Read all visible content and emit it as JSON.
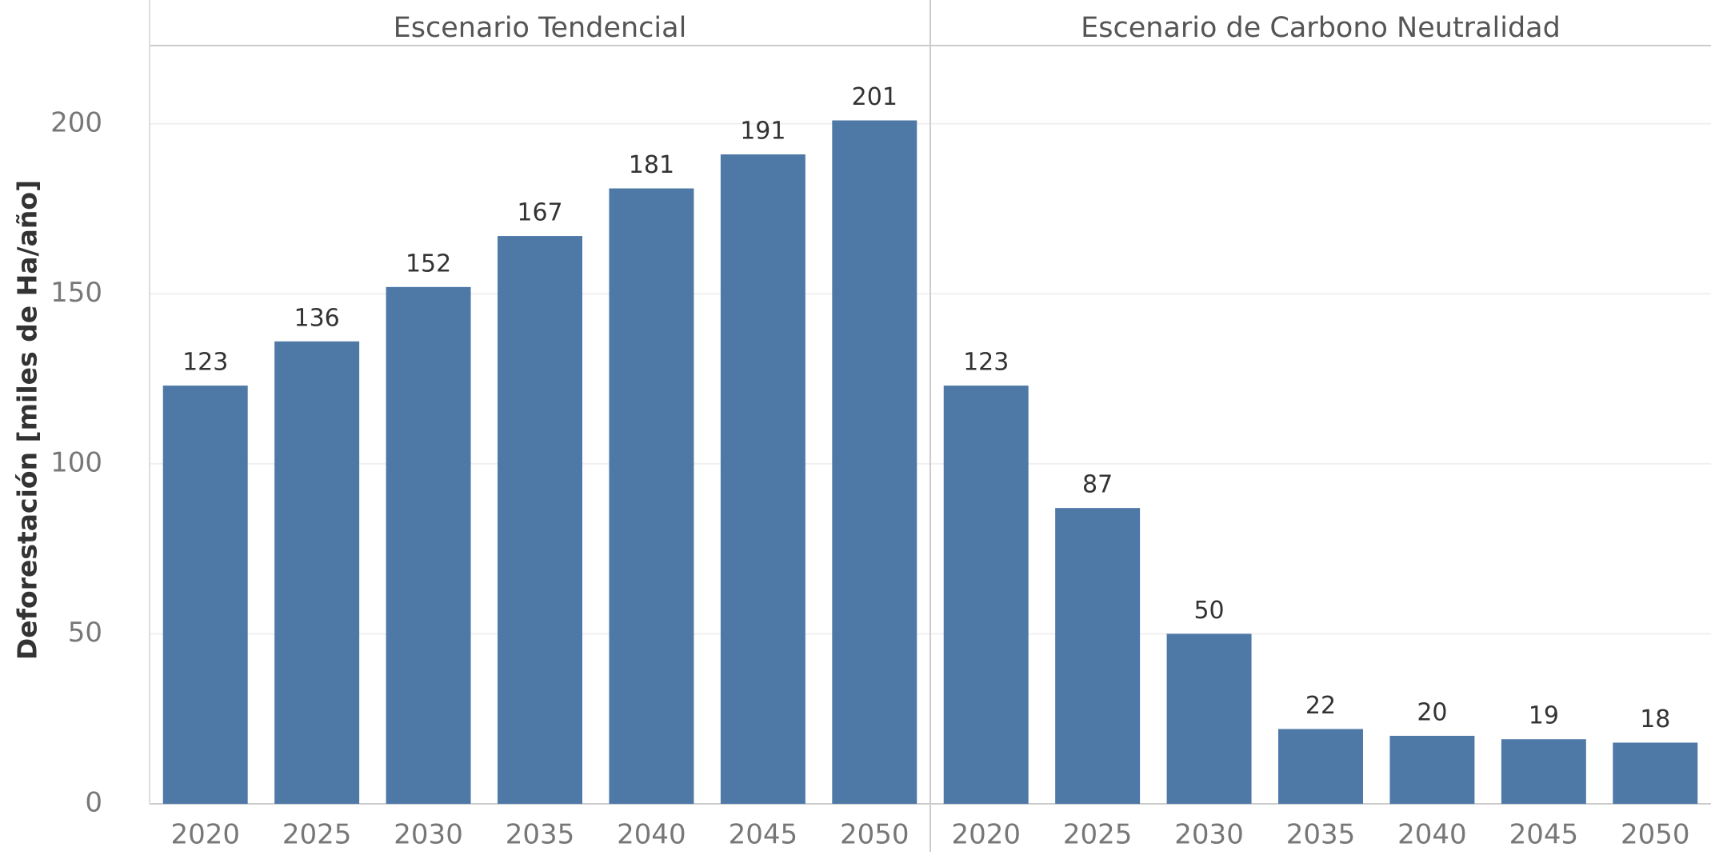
{
  "chart_data": {
    "type": "bar",
    "y_label": "Deforestación [miles de Ha/año]",
    "ylim": [
      0,
      223
    ],
    "yticks": [
      0,
      50,
      100,
      150,
      200
    ],
    "grid": true,
    "color": "#4e79a7",
    "panels": [
      {
        "title": "Escenario Tendencial",
        "categories": [
          "2020",
          "2025",
          "2030",
          "2035",
          "2040",
          "2045",
          "2050"
        ],
        "values": [
          123,
          136,
          152,
          167,
          181,
          191,
          201
        ]
      },
      {
        "title": "Escenario de Carbono Neutralidad",
        "categories": [
          "2020",
          "2025",
          "2030",
          "2035",
          "2040",
          "2045",
          "2050"
        ],
        "values": [
          123,
          87,
          50,
          22,
          20,
          19,
          18
        ]
      }
    ]
  }
}
